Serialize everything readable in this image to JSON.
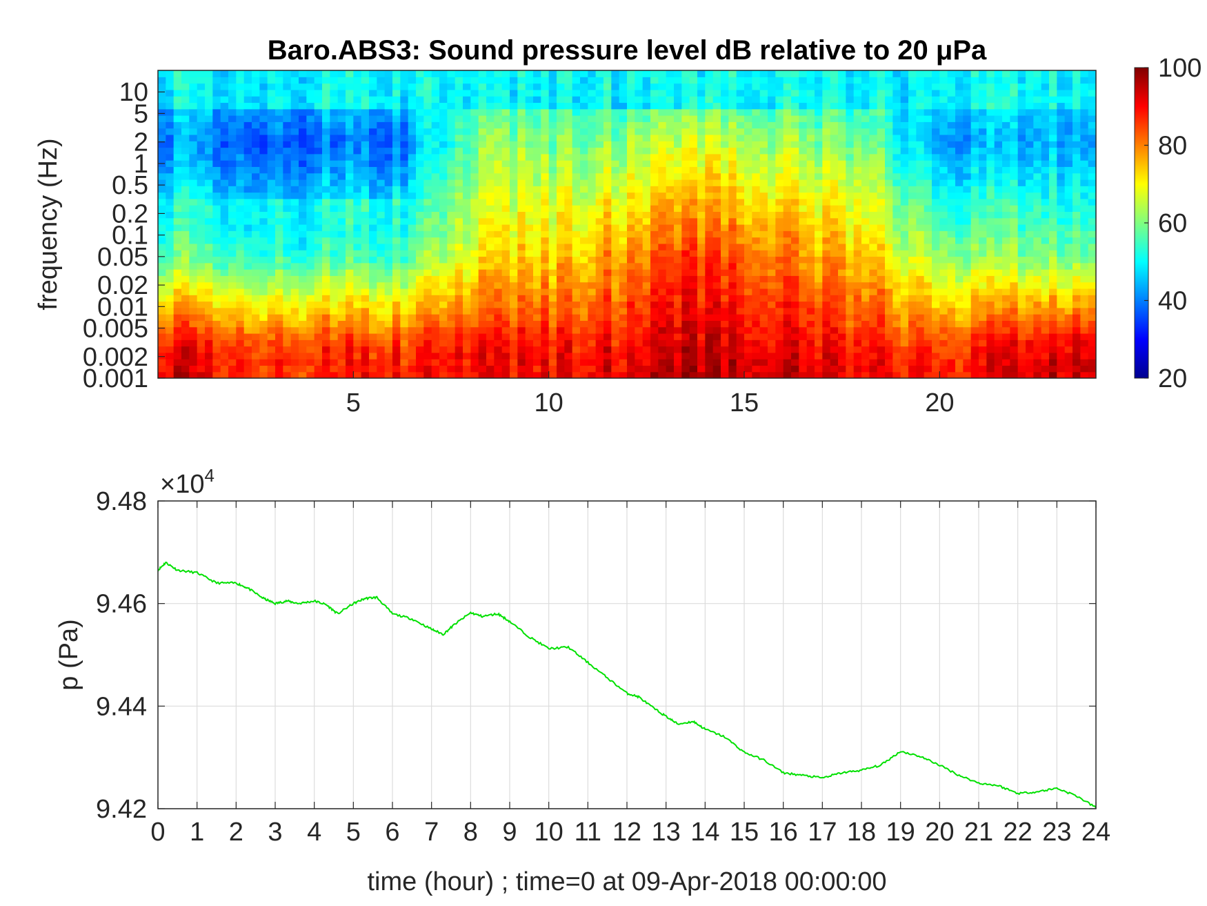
{
  "chart_data": [
    {
      "type": "heatmap",
      "title": "Baro.ABS3: Sound pressure level dB relative to 20 μPa",
      "ylabel": "frequency (Hz)",
      "xlabel": "",
      "yscale": "log",
      "xlim": [
        0,
        24
      ],
      "ylim": [
        0.001,
        20
      ],
      "x_ticks": [
        5,
        10,
        15,
        20
      ],
      "y_ticks": [
        0.001,
        0.002,
        0.005,
        0.01,
        0.02,
        0.05,
        0.1,
        0.2,
        0.5,
        1,
        2,
        5,
        10
      ],
      "colormap": "jet",
      "colorbar": {
        "range": [
          20,
          100
        ],
        "ticks": [
          20,
          40,
          60,
          80,
          100
        ],
        "position": "right"
      },
      "approx_levels_by_hour": [
        {
          "hour": 0.5,
          "low_freq_db": 90,
          "mid_freq_db": 58,
          "high_freq_db": 42
        },
        {
          "hour": 3,
          "low_freq_db": 85,
          "mid_freq_db": 55,
          "high_freq_db": 38
        },
        {
          "hour": 6,
          "low_freq_db": 85,
          "mid_freq_db": 55,
          "high_freq_db": 38
        },
        {
          "hour": 8.5,
          "low_freq_db": 88,
          "mid_freq_db": 72,
          "high_freq_db": 62
        },
        {
          "hour": 11,
          "low_freq_db": 88,
          "mid_freq_db": 75,
          "high_freq_db": 60
        },
        {
          "hour": 13.5,
          "low_freq_db": 93,
          "mid_freq_db": 85,
          "high_freq_db": 66
        },
        {
          "hour": 16,
          "low_freq_db": 90,
          "mid_freq_db": 80,
          "high_freq_db": 62
        },
        {
          "hour": 18,
          "low_freq_db": 88,
          "mid_freq_db": 75,
          "high_freq_db": 60
        },
        {
          "hour": 20,
          "low_freq_db": 85,
          "mid_freq_db": 62,
          "high_freq_db": 42
        },
        {
          "hour": 23.5,
          "low_freq_db": 92,
          "mid_freq_db": 60,
          "high_freq_db": 44
        }
      ]
    },
    {
      "type": "line",
      "title": "",
      "xlabel": "time (hour) ; time=0 at 09-Apr-2018 00:00:00",
      "ylabel": "p (Pa)",
      "y_exponent_label": "×10",
      "y_exponent": "4",
      "xlim": [
        0,
        24
      ],
      "ylim": [
        94200,
        94800
      ],
      "x_ticks": [
        0,
        1,
        2,
        3,
        4,
        5,
        6,
        7,
        8,
        9,
        10,
        11,
        12,
        13,
        14,
        15,
        16,
        17,
        18,
        19,
        20,
        21,
        22,
        23,
        24
      ],
      "y_ticks": [
        94200,
        94400,
        94600,
        94800
      ],
      "y_tick_labels": [
        "9.42",
        "9.44",
        "9.46",
        "9.48"
      ],
      "grid": true,
      "series": [
        {
          "color": "#00e000",
          "x": [
            0,
            0.2,
            0.5,
            1,
            1.5,
            2,
            2.3,
            2.7,
            3,
            3.3,
            3.6,
            4,
            4.3,
            4.6,
            5,
            5.3,
            5.6,
            6,
            6.5,
            7,
            7.3,
            7.6,
            8,
            8.3,
            8.7,
            9,
            9.5,
            10,
            10.5,
            11,
            11.5,
            12,
            12.3,
            12.7,
            13,
            13.3,
            13.7,
            14,
            14.5,
            15,
            15.5,
            16,
            16.5,
            17,
            17.5,
            18,
            18.5,
            19,
            19.5,
            20,
            20.5,
            21,
            21.5,
            22,
            22.5,
            23,
            23.5,
            24
          ],
          "y": [
            94665,
            94680,
            94665,
            94660,
            94640,
            94640,
            94630,
            94610,
            94600,
            94605,
            94600,
            94605,
            94598,
            94580,
            94600,
            94610,
            94612,
            94580,
            94570,
            94550,
            94540,
            94560,
            94582,
            94575,
            94580,
            94565,
            94535,
            94512,
            94515,
            94485,
            94455,
            94425,
            94418,
            94395,
            94380,
            94365,
            94370,
            94355,
            94340,
            94310,
            94295,
            94270,
            94265,
            94260,
            94270,
            94275,
            94285,
            94312,
            94302,
            94285,
            94265,
            94250,
            94245,
            94230,
            94233,
            94240,
            94225,
            94202
          ]
        }
      ]
    }
  ]
}
